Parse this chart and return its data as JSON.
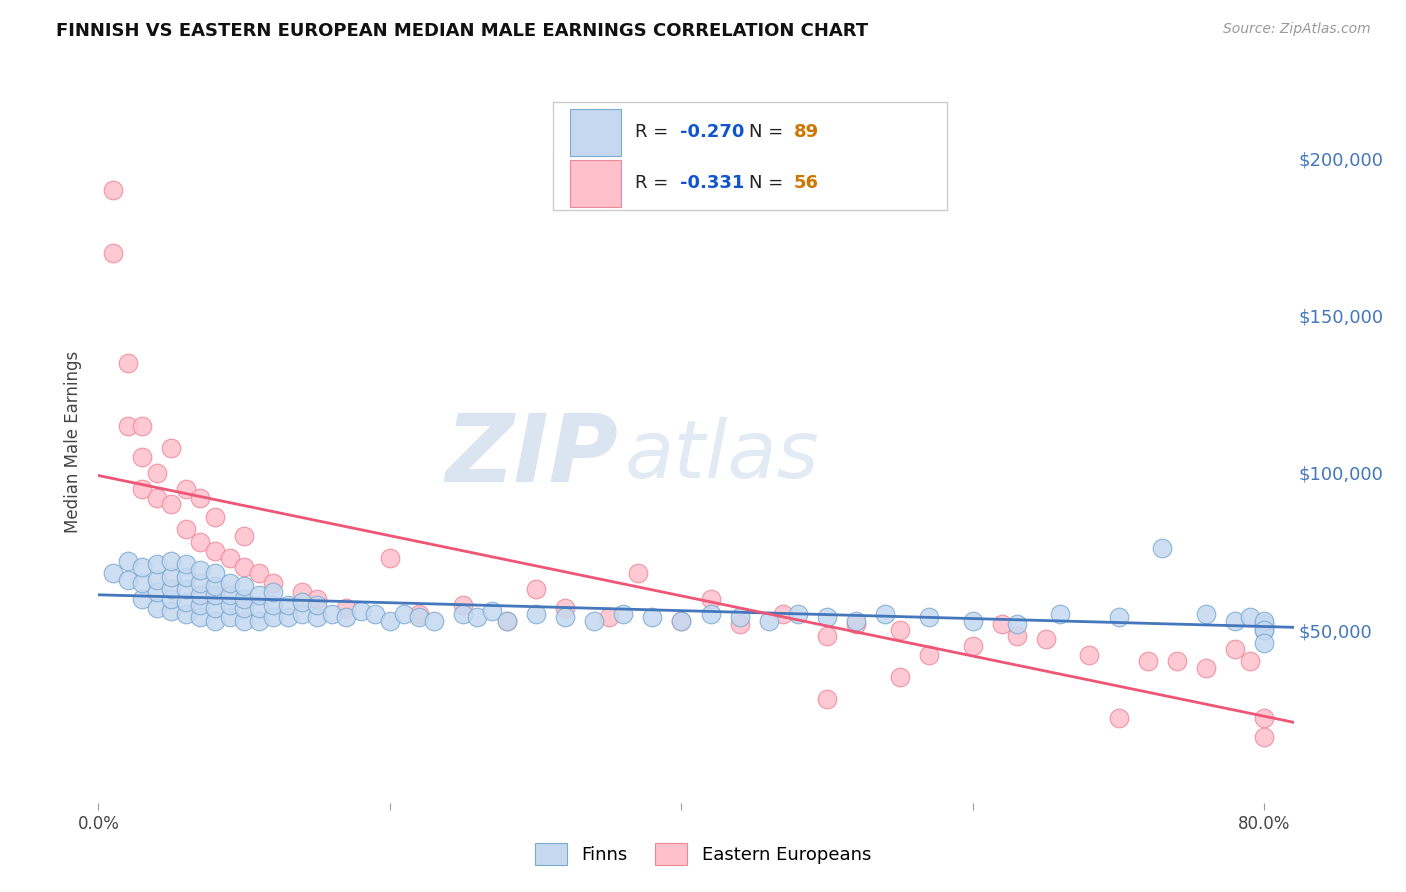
{
  "title": "FINNISH VS EASTERN EUROPEAN MEDIAN MALE EARNINGS CORRELATION CHART",
  "source": "Source: ZipAtlas.com",
  "ylabel": "Median Male Earnings",
  "xlim": [
    0.0,
    0.82
  ],
  "ylim": [
    -5000,
    225000
  ],
  "yticks": [
    50000,
    100000,
    150000,
    200000
  ],
  "xticks": [
    0.0,
    0.2,
    0.4,
    0.6,
    0.8
  ],
  "xtick_labels": [
    "0.0%",
    "",
    "",
    "",
    "80.0%"
  ],
  "ytick_labels": [
    "$50,000",
    "$100,000",
    "$150,000",
    "$200,000"
  ],
  "background_color": "#ffffff",
  "grid_color": "#b0b0cc",
  "finn_color": "#c5d8f0",
  "finn_edge_color": "#7aaad0",
  "finn_line_color": "#4477bb",
  "eastern_color": "#ffc0cc",
  "eastern_edge_color": "#ee8899",
  "eastern_line_color": "#ee5577",
  "finn_R": -0.27,
  "finn_N": 89,
  "eastern_R": -0.331,
  "eastern_N": 56,
  "legend_R_color": "#1155cc",
  "legend_N_color": "#cc7700",
  "watermark_zip": "ZIP",
  "watermark_atlas": "atlas",
  "watermark_color": "#c8d8ee",
  "finn_scatter_x": [
    0.01,
    0.02,
    0.02,
    0.03,
    0.03,
    0.03,
    0.04,
    0.04,
    0.04,
    0.04,
    0.05,
    0.05,
    0.05,
    0.05,
    0.05,
    0.06,
    0.06,
    0.06,
    0.06,
    0.06,
    0.07,
    0.07,
    0.07,
    0.07,
    0.07,
    0.08,
    0.08,
    0.08,
    0.08,
    0.08,
    0.09,
    0.09,
    0.09,
    0.09,
    0.1,
    0.1,
    0.1,
    0.1,
    0.11,
    0.11,
    0.11,
    0.12,
    0.12,
    0.12,
    0.13,
    0.13,
    0.14,
    0.14,
    0.15,
    0.15,
    0.16,
    0.17,
    0.18,
    0.19,
    0.2,
    0.21,
    0.22,
    0.23,
    0.25,
    0.26,
    0.27,
    0.28,
    0.3,
    0.32,
    0.34,
    0.36,
    0.38,
    0.4,
    0.42,
    0.44,
    0.46,
    0.48,
    0.5,
    0.52,
    0.54,
    0.57,
    0.6,
    0.63,
    0.66,
    0.7,
    0.73,
    0.76,
    0.78,
    0.79,
    0.8,
    0.8,
    0.8,
    0.8,
    0.8
  ],
  "finn_scatter_y": [
    68000,
    66000,
    72000,
    60000,
    65000,
    70000,
    57000,
    62000,
    66000,
    71000,
    56000,
    60000,
    63000,
    67000,
    72000,
    55000,
    59000,
    63000,
    67000,
    71000,
    54000,
    58000,
    61000,
    65000,
    69000,
    53000,
    57000,
    61000,
    64000,
    68000,
    54000,
    58000,
    61000,
    65000,
    53000,
    57000,
    60000,
    64000,
    53000,
    57000,
    61000,
    54000,
    58000,
    62000,
    54000,
    58000,
    55000,
    59000,
    54000,
    58000,
    55000,
    54000,
    56000,
    55000,
    53000,
    55000,
    54000,
    53000,
    55000,
    54000,
    56000,
    53000,
    55000,
    54000,
    53000,
    55000,
    54000,
    53000,
    55000,
    54000,
    53000,
    55000,
    54000,
    53000,
    55000,
    54000,
    53000,
    52000,
    55000,
    54000,
    76000,
    55000,
    53000,
    54000,
    52000,
    50000,
    53000,
    50000,
    46000
  ],
  "eastern_scatter_x": [
    0.01,
    0.01,
    0.02,
    0.02,
    0.03,
    0.03,
    0.03,
    0.04,
    0.04,
    0.05,
    0.05,
    0.06,
    0.06,
    0.07,
    0.07,
    0.08,
    0.08,
    0.09,
    0.1,
    0.1,
    0.11,
    0.12,
    0.14,
    0.15,
    0.17,
    0.2,
    0.22,
    0.25,
    0.28,
    0.3,
    0.32,
    0.35,
    0.37,
    0.4,
    0.42,
    0.44,
    0.47,
    0.5,
    0.52,
    0.55,
    0.57,
    0.6,
    0.62,
    0.63,
    0.65,
    0.68,
    0.7,
    0.72,
    0.74,
    0.76,
    0.78,
    0.79,
    0.8,
    0.8,
    0.5,
    0.55
  ],
  "eastern_scatter_y": [
    190000,
    170000,
    135000,
    115000,
    105000,
    95000,
    115000,
    92000,
    100000,
    90000,
    108000,
    82000,
    95000,
    78000,
    92000,
    75000,
    86000,
    73000,
    70000,
    80000,
    68000,
    65000,
    62000,
    60000,
    57000,
    73000,
    55000,
    58000,
    53000,
    63000,
    57000,
    54000,
    68000,
    53000,
    60000,
    52000,
    55000,
    48000,
    52000,
    50000,
    42000,
    45000,
    52000,
    48000,
    47000,
    42000,
    22000,
    40000,
    40000,
    38000,
    44000,
    40000,
    22000,
    16000,
    28000,
    35000
  ]
}
